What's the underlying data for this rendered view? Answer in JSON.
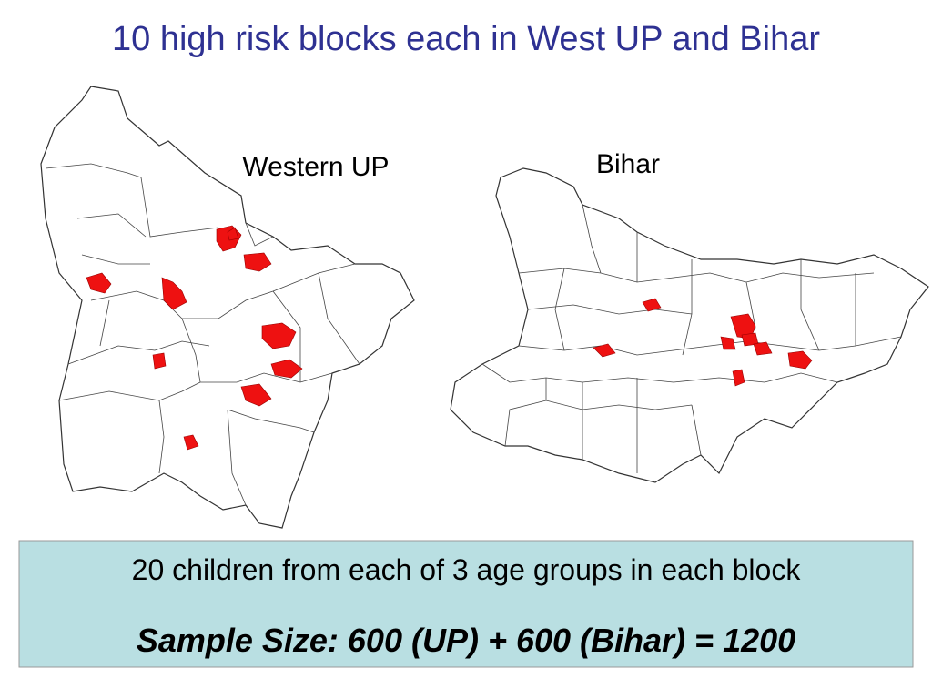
{
  "title": "10 high risk blocks each in West UP and Bihar",
  "maps": [
    {
      "label": "Western UP"
    },
    {
      "label": "Bihar"
    }
  ],
  "box": {
    "line1": "20 children from each of 3 age groups in each block",
    "line2": "Sample Size: 600 (UP) + 600 (Bihar) = 1200"
  }
}
